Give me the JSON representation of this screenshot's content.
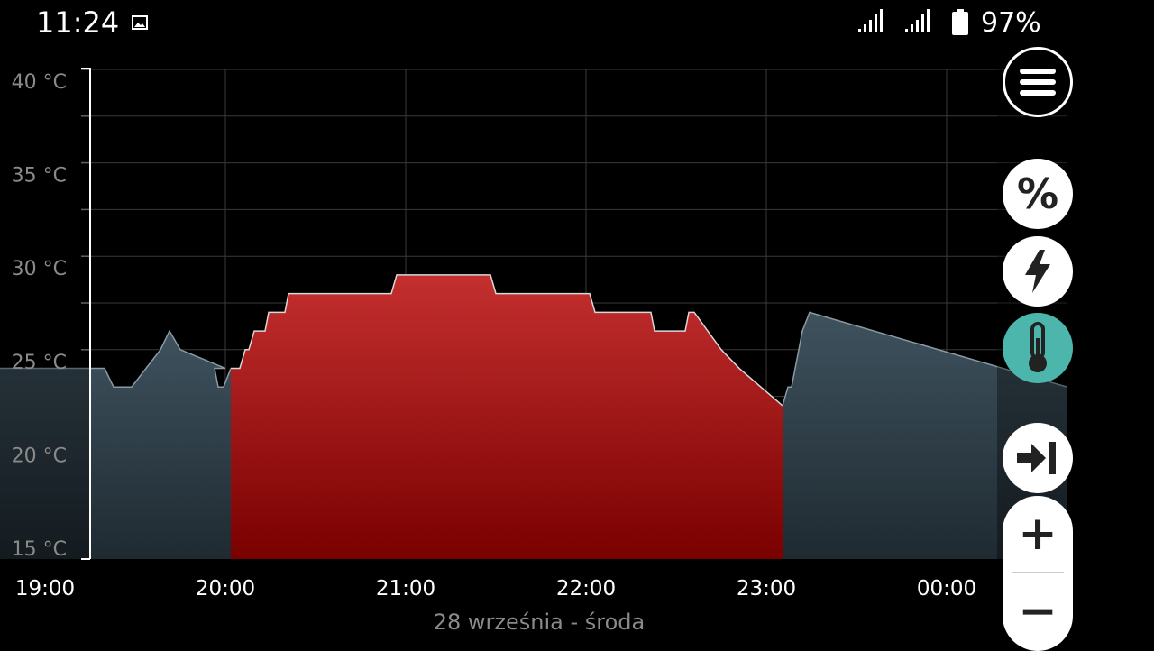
{
  "status_bar": {
    "time": "11:24",
    "battery": "97%"
  },
  "chart_data": {
    "type": "area",
    "unit": "°C",
    "yticks": [
      "40 °C",
      "35 °C",
      "30 °C",
      "25 °C",
      "20 °C",
      "15 °C"
    ],
    "ylim": [
      15,
      40
    ],
    "xticks": [
      "19:00",
      "20:00",
      "21:00",
      "22:00",
      "23:00",
      "00:00"
    ],
    "date": "28 września - środa",
    "series": [
      {
        "color": "#3d4f5c",
        "points": [
          [
            18.25,
            25
          ],
          [
            18.72,
            25
          ],
          [
            18.72,
            24
          ],
          [
            19.1,
            24
          ],
          [
            19.1,
            24
          ],
          [
            19.33,
            24
          ],
          [
            19.38,
            23
          ],
          [
            19.48,
            23
          ],
          [
            19.56,
            24
          ],
          [
            19.64,
            25
          ],
          [
            19.69,
            26
          ],
          [
            19.75,
            25
          ],
          [
            20.0,
            24
          ],
          [
            19.94,
            24
          ],
          [
            19.96,
            23
          ],
          [
            19.99,
            23
          ],
          [
            20.03,
            24
          ]
        ]
      },
      {
        "color": "#b01818",
        "points": [
          [
            20.03,
            24
          ],
          [
            20.08,
            24
          ],
          [
            20.11,
            25
          ],
          [
            20.13,
            25
          ],
          [
            20.16,
            26
          ],
          [
            20.22,
            26
          ],
          [
            20.24,
            27
          ],
          [
            20.33,
            27
          ],
          [
            20.35,
            28
          ],
          [
            20.92,
            28
          ],
          [
            20.95,
            29
          ],
          [
            21.47,
            29
          ],
          [
            21.5,
            28
          ],
          [
            22.02,
            28
          ],
          [
            22.05,
            27
          ],
          [
            22.36,
            27
          ],
          [
            22.38,
            26
          ],
          [
            22.55,
            26
          ],
          [
            22.57,
            27
          ],
          [
            22.6,
            27
          ],
          [
            22.75,
            25
          ],
          [
            22.85,
            24
          ],
          [
            23.09,
            22
          ]
        ]
      },
      {
        "color": "#3d4f5c",
        "points": [
          [
            23.09,
            22
          ],
          [
            23.12,
            23
          ],
          [
            23.14,
            23
          ],
          [
            23.2,
            26
          ],
          [
            23.24,
            27
          ],
          [
            24.67,
            23
          ]
        ]
      }
    ]
  },
  "controls": {
    "menu": "menu-icon",
    "percent": "%",
    "power": "lightning-icon",
    "temperature": "thermometer-icon",
    "jump_end": "jump-to-end-icon",
    "zoom_in": "+",
    "zoom_out": "−"
  }
}
